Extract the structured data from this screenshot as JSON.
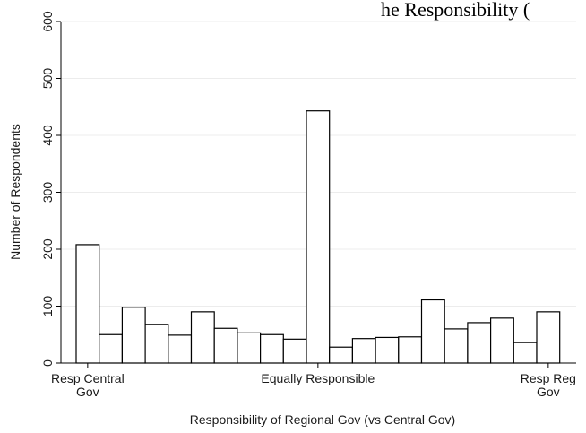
{
  "chart_data": {
    "type": "bar",
    "title_fragment": "he Responsibility (",
    "xlabel": "Responsibility of Regional Gov (vs Central Gov)",
    "ylabel": "Number of Respondents",
    "ylim": [
      0,
      600
    ],
    "yticks": [
      "0",
      "100",
      "200",
      "300",
      "400",
      "500",
      "600"
    ],
    "xtick_labels": [
      {
        "lines": [
          "Resp Central",
          "Gov"
        ],
        "bin": 0
      },
      {
        "lines": [
          "Equally Responsible"
        ],
        "bin": 10
      },
      {
        "lines": [
          "Resp Reg",
          "Gov"
        ],
        "bin": 20
      }
    ],
    "grid": true,
    "values": [
      208,
      50,
      98,
      68,
      49,
      90,
      61,
      53,
      50,
      42,
      443,
      28,
      43,
      45,
      46,
      111,
      60,
      71,
      79,
      36,
      90
    ]
  }
}
